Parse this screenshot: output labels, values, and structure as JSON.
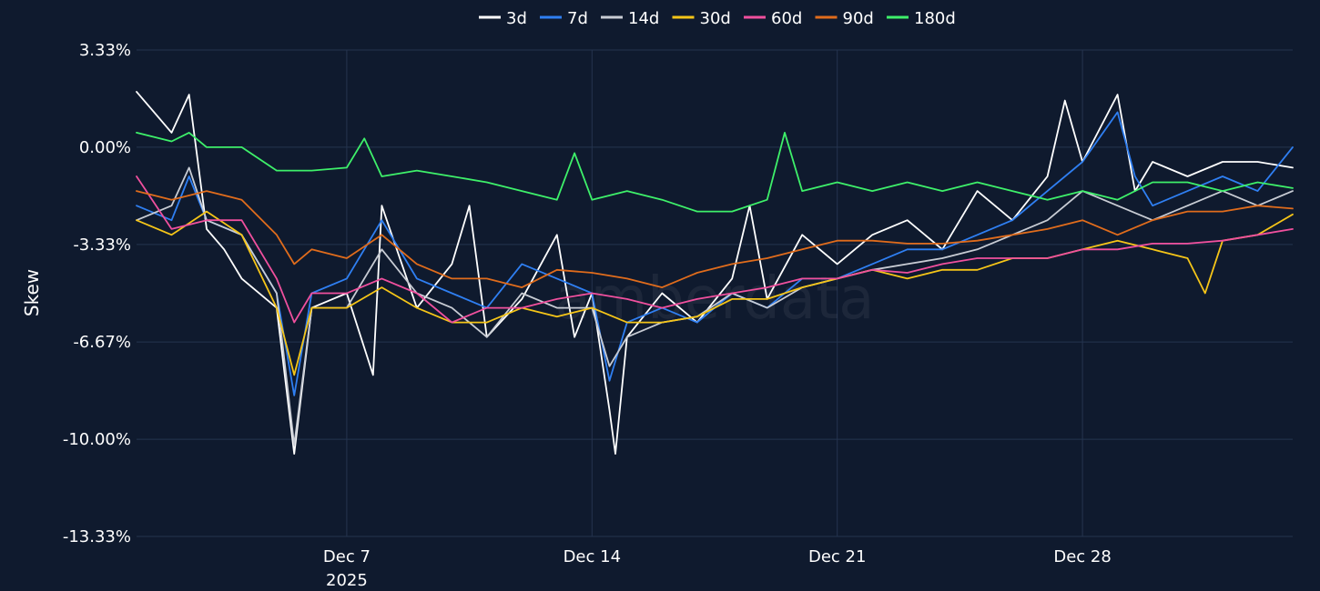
{
  "chart_data": {
    "type": "line",
    "ylabel": "Skew",
    "watermark": "amberdata",
    "y_range": [
      -13.33,
      3.33
    ],
    "y_ticks": [
      {
        "value": 3.33,
        "label": "3.33%"
      },
      {
        "value": 0.0,
        "label": "0.00%"
      },
      {
        "value": -3.33,
        "label": "-3.33%"
      },
      {
        "value": -6.67,
        "label": "-6.67%"
      },
      {
        "value": -10.0,
        "label": "-10.00%"
      },
      {
        "value": -13.33,
        "label": "-13.33%"
      }
    ],
    "x_range": [
      "2025-12-01",
      "2026-01-03"
    ],
    "x_ticks": [
      {
        "value": "2025-12-07",
        "label": "Dec 7",
        "sublabel": "2025"
      },
      {
        "value": "2025-12-14",
        "label": "Dec 14",
        "sublabel": ""
      },
      {
        "value": "2025-12-21",
        "label": "Dec 21",
        "sublabel": ""
      },
      {
        "value": "2025-12-28",
        "label": "Dec 28",
        "sublabel": ""
      }
    ],
    "grid": true,
    "legend_position": "top-center",
    "series": [
      {
        "name": "3d",
        "color": "#ffffff",
        "points": [
          [
            "2025-12-01",
            1.9
          ],
          [
            "2025-12-02",
            0.5
          ],
          [
            "2025-12-02T12",
            1.8
          ],
          [
            "2025-12-03",
            -2.8
          ],
          [
            "2025-12-03T12",
            -3.5
          ],
          [
            "2025-12-04",
            -4.5
          ],
          [
            "2025-12-05",
            -5.5
          ],
          [
            "2025-12-05T12",
            -10.5
          ],
          [
            "2025-12-06",
            -5.5
          ],
          [
            "2025-12-07",
            -5.0
          ],
          [
            "2025-12-07T18",
            -7.8
          ],
          [
            "2025-12-08",
            -2.0
          ],
          [
            "2025-12-09",
            -5.5
          ],
          [
            "2025-12-10",
            -4.0
          ],
          [
            "2025-12-10T12",
            -2.0
          ],
          [
            "2025-12-11",
            -6.5
          ],
          [
            "2025-12-12",
            -5.2
          ],
          [
            "2025-12-13",
            -3.0
          ],
          [
            "2025-12-13T12",
            -6.5
          ],
          [
            "2025-12-14",
            -5.0
          ],
          [
            "2025-12-14T12",
            -9.0
          ],
          [
            "2025-12-14T16",
            -10.5
          ],
          [
            "2025-12-15",
            -6.5
          ],
          [
            "2025-12-16",
            -5.0
          ],
          [
            "2025-12-17",
            -6.0
          ],
          [
            "2025-12-18",
            -4.5
          ],
          [
            "2025-12-18T12",
            -2.0
          ],
          [
            "2025-12-19",
            -5.2
          ],
          [
            "2025-12-20",
            -3.0
          ],
          [
            "2025-12-21",
            -4.0
          ],
          [
            "2025-12-22",
            -3.0
          ],
          [
            "2025-12-23",
            -2.5
          ],
          [
            "2025-12-24",
            -3.5
          ],
          [
            "2025-12-25",
            -1.5
          ],
          [
            "2025-12-26",
            -2.5
          ],
          [
            "2025-12-27",
            -1.0
          ],
          [
            "2025-12-27T12",
            1.6
          ],
          [
            "2025-12-28",
            -0.5
          ],
          [
            "2025-12-29",
            1.8
          ],
          [
            "2025-12-29T12",
            -1.5
          ],
          [
            "2025-12-30",
            -0.5
          ],
          [
            "2025-12-31",
            -1.0
          ],
          [
            "2026-01-01",
            -0.5
          ],
          [
            "2026-01-02",
            -0.5
          ],
          [
            "2026-01-03",
            -0.7
          ]
        ]
      },
      {
        "name": "7d",
        "color": "#2f7ff2",
        "points": [
          [
            "2025-12-01",
            -2.0
          ],
          [
            "2025-12-02",
            -2.5
          ],
          [
            "2025-12-02T12",
            -1.0
          ],
          [
            "2025-12-03",
            -2.5
          ],
          [
            "2025-12-04",
            -3.0
          ],
          [
            "2025-12-05",
            -5.0
          ],
          [
            "2025-12-05T12",
            -8.5
          ],
          [
            "2025-12-06",
            -5.0
          ],
          [
            "2025-12-07",
            -4.5
          ],
          [
            "2025-12-08",
            -2.5
          ],
          [
            "2025-12-09",
            -4.5
          ],
          [
            "2025-12-10",
            -5.0
          ],
          [
            "2025-12-11",
            -5.5
          ],
          [
            "2025-12-12",
            -4.0
          ],
          [
            "2025-12-13",
            -4.5
          ],
          [
            "2025-12-14",
            -5.0
          ],
          [
            "2025-12-14T12",
            -8.0
          ],
          [
            "2025-12-15",
            -6.0
          ],
          [
            "2025-12-16",
            -5.5
          ],
          [
            "2025-12-17",
            -6.0
          ],
          [
            "2025-12-18",
            -5.0
          ],
          [
            "2025-12-19",
            -5.5
          ],
          [
            "2025-12-20",
            -4.5
          ],
          [
            "2025-12-21",
            -4.5
          ],
          [
            "2025-12-22",
            -4.0
          ],
          [
            "2025-12-23",
            -3.5
          ],
          [
            "2025-12-24",
            -3.5
          ],
          [
            "2025-12-25",
            -3.0
          ],
          [
            "2025-12-26",
            -2.5
          ],
          [
            "2025-12-27",
            -1.5
          ],
          [
            "2025-12-28",
            -0.5
          ],
          [
            "2025-12-29",
            1.2
          ],
          [
            "2025-12-29T12",
            -1.0
          ],
          [
            "2025-12-30",
            -2.0
          ],
          [
            "2025-12-31",
            -1.5
          ],
          [
            "2026-01-01",
            -1.0
          ],
          [
            "2026-01-02",
            -1.5
          ],
          [
            "2026-01-03",
            0.0
          ]
        ]
      },
      {
        "name": "14d",
        "color": "#c8ccd4",
        "points": [
          [
            "2025-12-01",
            -2.5
          ],
          [
            "2025-12-02",
            -2.0
          ],
          [
            "2025-12-02T12",
            -0.7
          ],
          [
            "2025-12-03",
            -2.5
          ],
          [
            "2025-12-04",
            -3.0
          ],
          [
            "2025-12-05",
            -5.0
          ],
          [
            "2025-12-05T12",
            -10.2
          ],
          [
            "2025-12-06",
            -5.5
          ],
          [
            "2025-12-07",
            -5.5
          ],
          [
            "2025-12-08",
            -3.5
          ],
          [
            "2025-12-09",
            -5.0
          ],
          [
            "2025-12-10",
            -5.5
          ],
          [
            "2025-12-11",
            -6.5
          ],
          [
            "2025-12-12",
            -5.0
          ],
          [
            "2025-12-13",
            -5.5
          ],
          [
            "2025-12-14",
            -5.5
          ],
          [
            "2025-12-14T12",
            -7.5
          ],
          [
            "2025-12-15",
            -6.5
          ],
          [
            "2025-12-16",
            -6.0
          ],
          [
            "2025-12-17",
            -5.8
          ],
          [
            "2025-12-18",
            -5.0
          ],
          [
            "2025-12-19",
            -5.5
          ],
          [
            "2025-12-20",
            -4.8
          ],
          [
            "2025-12-21",
            -4.5
          ],
          [
            "2025-12-22",
            -4.2
          ],
          [
            "2025-12-23",
            -4.0
          ],
          [
            "2025-12-24",
            -3.8
          ],
          [
            "2025-12-25",
            -3.5
          ],
          [
            "2025-12-26",
            -3.0
          ],
          [
            "2025-12-27",
            -2.5
          ],
          [
            "2025-12-28",
            -1.5
          ],
          [
            "2025-12-29",
            -2.0
          ],
          [
            "2025-12-30",
            -2.5
          ],
          [
            "2025-12-31",
            -2.0
          ],
          [
            "2026-01-01",
            -1.5
          ],
          [
            "2026-01-02",
            -2.0
          ],
          [
            "2026-01-03",
            -1.5
          ]
        ]
      },
      {
        "name": "30d",
        "color": "#f5c518",
        "points": [
          [
            "2025-12-01",
            -2.5
          ],
          [
            "2025-12-02",
            -3.0
          ],
          [
            "2025-12-03",
            -2.2
          ],
          [
            "2025-12-04",
            -3.0
          ],
          [
            "2025-12-05",
            -5.5
          ],
          [
            "2025-12-05T12",
            -7.8
          ],
          [
            "2025-12-06",
            -5.5
          ],
          [
            "2025-12-07",
            -5.5
          ],
          [
            "2025-12-08",
            -4.8
          ],
          [
            "2025-12-09",
            -5.5
          ],
          [
            "2025-12-10",
            -6.0
          ],
          [
            "2025-12-11",
            -6.0
          ],
          [
            "2025-12-12",
            -5.5
          ],
          [
            "2025-12-13",
            -5.8
          ],
          [
            "2025-12-14",
            -5.5
          ],
          [
            "2025-12-15",
            -6.0
          ],
          [
            "2025-12-16",
            -6.0
          ],
          [
            "2025-12-17",
            -5.8
          ],
          [
            "2025-12-18",
            -5.2
          ],
          [
            "2025-12-19",
            -5.2
          ],
          [
            "2025-12-20",
            -4.8
          ],
          [
            "2025-12-21",
            -4.5
          ],
          [
            "2025-12-22",
            -4.2
          ],
          [
            "2025-12-23",
            -4.5
          ],
          [
            "2025-12-24",
            -4.2
          ],
          [
            "2025-12-25",
            -4.2
          ],
          [
            "2025-12-26",
            -3.8
          ],
          [
            "2025-12-27",
            -3.8
          ],
          [
            "2025-12-28",
            -3.5
          ],
          [
            "2025-12-29",
            -3.2
          ],
          [
            "2025-12-30",
            -3.5
          ],
          [
            "2025-12-31",
            -3.8
          ],
          [
            "2025-12-31T12",
            -5.0
          ],
          [
            "2026-01-01",
            -3.2
          ],
          [
            "2026-01-02",
            -3.0
          ],
          [
            "2026-01-03",
            -2.3
          ]
        ]
      },
      {
        "name": "60d",
        "color": "#f0509e",
        "points": [
          [
            "2025-12-01",
            -1.0
          ],
          [
            "2025-12-02",
            -2.8
          ],
          [
            "2025-12-03",
            -2.5
          ],
          [
            "2025-12-04",
            -2.5
          ],
          [
            "2025-12-05",
            -4.5
          ],
          [
            "2025-12-05T12",
            -6.0
          ],
          [
            "2025-12-06",
            -5.0
          ],
          [
            "2025-12-07",
            -5.0
          ],
          [
            "2025-12-08",
            -4.5
          ],
          [
            "2025-12-09",
            -5.0
          ],
          [
            "2025-12-10",
            -6.0
          ],
          [
            "2025-12-11",
            -5.5
          ],
          [
            "2025-12-12",
            -5.5
          ],
          [
            "2025-12-13",
            -5.2
          ],
          [
            "2025-12-14",
            -5.0
          ],
          [
            "2025-12-15",
            -5.2
          ],
          [
            "2025-12-16",
            -5.5
          ],
          [
            "2025-12-17",
            -5.2
          ],
          [
            "2025-12-18",
            -5.0
          ],
          [
            "2025-12-19",
            -4.8
          ],
          [
            "2025-12-20",
            -4.5
          ],
          [
            "2025-12-21",
            -4.5
          ],
          [
            "2025-12-22",
            -4.2
          ],
          [
            "2025-12-23",
            -4.3
          ],
          [
            "2025-12-24",
            -4.0
          ],
          [
            "2025-12-25",
            -3.8
          ],
          [
            "2025-12-26",
            -3.8
          ],
          [
            "2025-12-27",
            -3.8
          ],
          [
            "2025-12-28",
            -3.5
          ],
          [
            "2025-12-29",
            -3.5
          ],
          [
            "2025-12-30",
            -3.3
          ],
          [
            "2025-12-31",
            -3.3
          ],
          [
            "2026-01-01",
            -3.2
          ],
          [
            "2026-01-02",
            -3.0
          ],
          [
            "2026-01-03",
            -2.8
          ]
        ]
      },
      {
        "name": "90d",
        "color": "#e06c1c",
        "points": [
          [
            "2025-12-01",
            -1.5
          ],
          [
            "2025-12-02",
            -1.8
          ],
          [
            "2025-12-03",
            -1.5
          ],
          [
            "2025-12-04",
            -1.8
          ],
          [
            "2025-12-05",
            -3.0
          ],
          [
            "2025-12-05T12",
            -4.0
          ],
          [
            "2025-12-06",
            -3.5
          ],
          [
            "2025-12-07",
            -3.8
          ],
          [
            "2025-12-08",
            -3.0
          ],
          [
            "2025-12-09",
            -4.0
          ],
          [
            "2025-12-10",
            -4.5
          ],
          [
            "2025-12-11",
            -4.5
          ],
          [
            "2025-12-12",
            -4.8
          ],
          [
            "2025-12-13",
            -4.2
          ],
          [
            "2025-12-14",
            -4.3
          ],
          [
            "2025-12-15",
            -4.5
          ],
          [
            "2025-12-16",
            -4.8
          ],
          [
            "2025-12-17",
            -4.3
          ],
          [
            "2025-12-18",
            -4.0
          ],
          [
            "2025-12-19",
            -3.8
          ],
          [
            "2025-12-20",
            -3.5
          ],
          [
            "2025-12-21",
            -3.2
          ],
          [
            "2025-12-22",
            -3.2
          ],
          [
            "2025-12-23",
            -3.3
          ],
          [
            "2025-12-24",
            -3.3
          ],
          [
            "2025-12-25",
            -3.2
          ],
          [
            "2025-12-26",
            -3.0
          ],
          [
            "2025-12-27",
            -2.8
          ],
          [
            "2025-12-28",
            -2.5
          ],
          [
            "2025-12-29",
            -3.0
          ],
          [
            "2025-12-30",
            -2.5
          ],
          [
            "2025-12-31",
            -2.2
          ],
          [
            "2026-01-01",
            -2.2
          ],
          [
            "2026-01-02",
            -2.0
          ],
          [
            "2026-01-03",
            -2.1
          ]
        ]
      },
      {
        "name": "180d",
        "color": "#3ef06a",
        "points": [
          [
            "2025-12-01",
            0.5
          ],
          [
            "2025-12-02",
            0.2
          ],
          [
            "2025-12-02T12",
            0.5
          ],
          [
            "2025-12-03",
            0.0
          ],
          [
            "2025-12-04",
            0.0
          ],
          [
            "2025-12-05",
            -0.8
          ],
          [
            "2025-12-06",
            -0.8
          ],
          [
            "2025-12-07",
            -0.7
          ],
          [
            "2025-12-07T12",
            0.3
          ],
          [
            "2025-12-08",
            -1.0
          ],
          [
            "2025-12-09",
            -0.8
          ],
          [
            "2025-12-10",
            -1.0
          ],
          [
            "2025-12-11",
            -1.2
          ],
          [
            "2025-12-12",
            -1.5
          ],
          [
            "2025-12-13",
            -1.8
          ],
          [
            "2025-12-13T12",
            -0.2
          ],
          [
            "2025-12-14",
            -1.8
          ],
          [
            "2025-12-15",
            -1.5
          ],
          [
            "2025-12-16",
            -1.8
          ],
          [
            "2025-12-17",
            -2.2
          ],
          [
            "2025-12-18",
            -2.2
          ],
          [
            "2025-12-19",
            -1.8
          ],
          [
            "2025-12-19T12",
            0.5
          ],
          [
            "2025-12-20",
            -1.5
          ],
          [
            "2025-12-21",
            -1.2
          ],
          [
            "2025-12-22",
            -1.5
          ],
          [
            "2025-12-23",
            -1.2
          ],
          [
            "2025-12-24",
            -1.5
          ],
          [
            "2025-12-25",
            -1.2
          ],
          [
            "2025-12-26",
            -1.5
          ],
          [
            "2025-12-27",
            -1.8
          ],
          [
            "2025-12-28",
            -1.5
          ],
          [
            "2025-12-29",
            -1.8
          ],
          [
            "2025-12-30",
            -1.2
          ],
          [
            "2025-12-31",
            -1.2
          ],
          [
            "2026-01-01",
            -1.5
          ],
          [
            "2026-01-02",
            -1.2
          ],
          [
            "2026-01-03",
            -1.4
          ]
        ]
      }
    ]
  }
}
